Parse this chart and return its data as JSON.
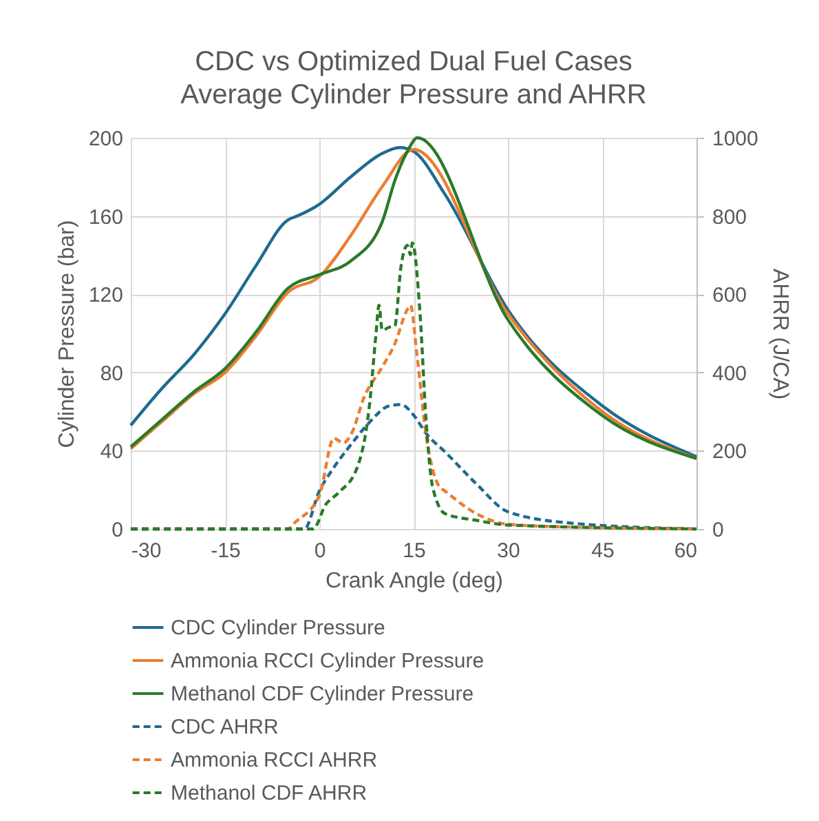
{
  "chart_data": {
    "type": "line",
    "title": "CDC vs Optimized Dual Fuel Cases",
    "subtitle": "Average Cylinder Pressure and AHRR",
    "xlabel": "Crank Angle (deg)",
    "ylabel": "Cylinder Pressure (bar)",
    "y2label": "AHRR (J/CA)",
    "xlim": [
      -30,
      60
    ],
    "xticks": [
      -30,
      -15,
      0,
      15,
      30,
      45,
      60
    ],
    "ylim": [
      0,
      200
    ],
    "yticks": [
      0,
      40,
      80,
      120,
      160,
      200
    ],
    "y2lim": [
      0,
      1000
    ],
    "y2ticks": [
      0,
      200,
      400,
      600,
      800,
      1000
    ],
    "grid": true,
    "legend": "bottom",
    "series": [
      {
        "name": "CDC Cylinder Pressure",
        "color": "#1f6a91",
        "line_style": "solid",
        "x": [
          -30,
          -25,
          -20,
          -15,
          -10,
          -5,
          -3.5,
          0,
          5,
          10,
          12.8,
          15,
          20,
          30,
          45,
          60
        ],
        "values": [
          53,
          72,
          89,
          110,
          135,
          158,
          160,
          166,
          180,
          192,
          195,
          193,
          171,
          112,
          63,
          37
        ]
      },
      {
        "name": "Ammonia RCCI Cylinder Pressure",
        "color": "#ed7d31",
        "line_style": "solid",
        "x": [
          -30,
          -25,
          -20,
          -15,
          -10,
          -5,
          0,
          5,
          10,
          15,
          30,
          45,
          60
        ],
        "values": [
          41,
          55,
          69,
          80,
          99,
          121,
          129,
          150,
          175,
          194,
          110,
          60,
          36
        ]
      },
      {
        "name": "Methanol CDF Cylinder Pressure",
        "color": "#2a7a2b",
        "line_style": "solid",
        "x": [
          -30,
          -25,
          -20,
          -15,
          -10,
          -5,
          0,
          5,
          10,
          12,
          14,
          15.6,
          30,
          45,
          60
        ],
        "values": [
          42,
          56,
          70,
          82,
          101,
          123,
          130,
          137,
          157,
          178,
          193,
          200,
          107,
          58,
          36
        ]
      },
      {
        "name": "CDC AHRR",
        "color": "#1f6a91",
        "line_style": "dashed",
        "axis": "y2",
        "x": [
          -30,
          -2.4,
          0,
          2,
          5,
          8,
          11,
          13,
          15,
          17,
          20,
          25,
          30,
          40,
          60
        ],
        "values": [
          0,
          0,
          97,
          150,
          215,
          273,
          314,
          318,
          291,
          244,
          197,
          115,
          44,
          15,
          0
        ]
      },
      {
        "name": "Ammonia RCCI AHRR",
        "color": "#ed7d31",
        "line_style": "dashed",
        "axis": "y2",
        "x": [
          -30,
          -5,
          -4,
          0,
          2.3,
          3.8,
          5.3,
          7,
          10,
          12,
          14,
          14.5,
          15.5,
          17,
          19,
          20,
          25,
          30,
          40,
          60
        ],
        "values": [
          0,
          0,
          15,
          85,
          232,
          220,
          250,
          332,
          414,
          473,
          561,
          572,
          449,
          238,
          110,
          97,
          39,
          12,
          5,
          0
        ]
      },
      {
        "name": "Methanol CDF AHRR",
        "color": "#2a7a2b",
        "line_style": "dashed",
        "axis": "y2",
        "x": [
          -30,
          -1,
          1,
          3,
          6,
          8,
          9,
          9.5,
          10,
          11,
          12,
          13,
          14,
          14.5,
          14.8,
          16,
          17,
          18,
          20,
          25,
          30,
          60
        ],
        "values": [
          0,
          0,
          62,
          92,
          156,
          320,
          496,
          572,
          508,
          515,
          519,
          672,
          725,
          701,
          731,
          555,
          273,
          109,
          39,
          22,
          10,
          0
        ]
      }
    ]
  }
}
